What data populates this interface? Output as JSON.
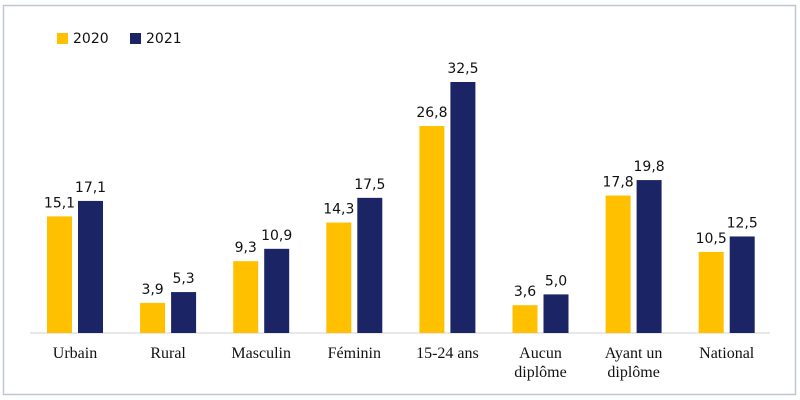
{
  "chart_data": {
    "type": "bar",
    "categories": [
      "Urbain",
      "Rural",
      "Masculin",
      "Féminin",
      "15-24 ans",
      "Aucun diplôme",
      "Ayant un diplôme",
      "National"
    ],
    "series": [
      {
        "name": "2020",
        "color": "#ffc000",
        "values": [
          15.1,
          3.9,
          9.3,
          14.3,
          26.8,
          3.6,
          17.8,
          10.5
        ],
        "value_labels": [
          "15,1",
          "3,9",
          "9,3",
          "14,3",
          "26,8",
          "3,6",
          "17,8",
          "10,5"
        ]
      },
      {
        "name": "2021",
        "color": "#1b2565",
        "values": [
          17.1,
          5.3,
          10.9,
          17.5,
          32.5,
          5.0,
          19.8,
          12.5
        ],
        "value_labels": [
          "17,1",
          "5,3",
          "10,9",
          "17,5",
          "32,5",
          "5,0",
          "19,8",
          "12,5"
        ]
      }
    ],
    "legend": "top-left"
  }
}
